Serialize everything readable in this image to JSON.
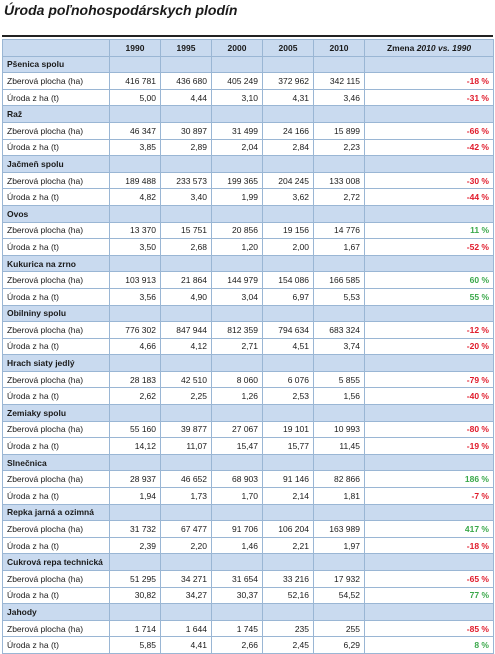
{
  "title": "Úroda poľnohospodárskych plodín",
  "columns": {
    "years": [
      "1990",
      "1995",
      "2000",
      "2005",
      "2010"
    ],
    "change_prefix": "Zmena ",
    "change_range": "2010 vs. 1990"
  },
  "colors": {
    "negative": "#e01a2a",
    "positive": "#3aa84a",
    "header": "#c9daef"
  },
  "crops": [
    {
      "name": "Pšenica spolu",
      "rows": [
        {
          "label": "Zberová plocha (ha)",
          "values": [
            "416 781",
            "436 680",
            "405 249",
            "372 962",
            "342 115"
          ],
          "change": "-18 %",
          "trend": "neg"
        },
        {
          "label": "Úroda z ha (t)",
          "values": [
            "5,00",
            "4,44",
            "3,10",
            "4,31",
            "3,46"
          ],
          "change": "-31 %",
          "trend": "neg"
        }
      ]
    },
    {
      "name": "Raž",
      "rows": [
        {
          "label": "Zberová plocha (ha)",
          "values": [
            "46 347",
            "30 897",
            "31 499",
            "24 166",
            "15 899"
          ],
          "change": "-66 %",
          "trend": "neg"
        },
        {
          "label": "Úroda z ha (t)",
          "values": [
            "3,85",
            "2,89",
            "2,04",
            "2,84",
            "2,23"
          ],
          "change": "-42 %",
          "trend": "neg"
        }
      ]
    },
    {
      "name": "Jačmeň spolu",
      "rows": [
        {
          "label": "Zberová plocha (ha)",
          "values": [
            "189 488",
            "233 573",
            "199 365",
            "204 245",
            "133 008"
          ],
          "change": "-30 %",
          "trend": "neg"
        },
        {
          "label": "Úroda z ha (t)",
          "values": [
            "4,82",
            "3,40",
            "1,99",
            "3,62",
            "2,72"
          ],
          "change": "-44 %",
          "trend": "neg"
        }
      ]
    },
    {
      "name": "Ovos",
      "rows": [
        {
          "label": "Zberová plocha (ha)",
          "values": [
            "13 370",
            "15 751",
            "20 856",
            "19 156",
            "14 776"
          ],
          "change": "11 %",
          "trend": "pos"
        },
        {
          "label": "Úroda z ha (t)",
          "values": [
            "3,50",
            "2,68",
            "1,20",
            "2,00",
            "1,67"
          ],
          "change": "-52 %",
          "trend": "neg"
        }
      ]
    },
    {
      "name": "Kukurica na zrno",
      "rows": [
        {
          "label": "Zberová plocha (ha)",
          "values": [
            "103 913",
            "21 864",
            "144 979",
            "154 086",
            "166 585"
          ],
          "change": "60 %",
          "trend": "pos"
        },
        {
          "label": "Úroda z ha (t)",
          "values": [
            "3,56",
            "4,90",
            "3,04",
            "6,97",
            "5,53"
          ],
          "change": "55 %",
          "trend": "pos"
        }
      ]
    },
    {
      "name": "Obilniny spolu",
      "rows": [
        {
          "label": "Zberová plocha (ha)",
          "values": [
            "776 302",
            "847 944",
            "812 359",
            "794 634",
            "683 324"
          ],
          "change": "-12 %",
          "trend": "neg"
        },
        {
          "label": "Úroda z ha (t)",
          "values": [
            "4,66",
            "4,12",
            "2,71",
            "4,51",
            "3,74"
          ],
          "change": "-20 %",
          "trend": "neg"
        }
      ]
    },
    {
      "name": "Hrach siaty jedlý",
      "rows": [
        {
          "label": "Zberová plocha (ha)",
          "values": [
            "28 183",
            "42 510",
            "8 060",
            "6 076",
            "5 855"
          ],
          "change": "-79 %",
          "trend": "neg"
        },
        {
          "label": "Úroda z ha (t)",
          "values": [
            "2,62",
            "2,25",
            "1,26",
            "2,53",
            "1,56"
          ],
          "change": "-40 %",
          "trend": "neg"
        }
      ]
    },
    {
      "name": "Zemiaky spolu",
      "rows": [
        {
          "label": "Zberová plocha (ha)",
          "values": [
            "55 160",
            "39 877",
            "27 067",
            "19 101",
            "10 993"
          ],
          "change": "-80 %",
          "trend": "neg"
        },
        {
          "label": "Úroda z ha (t)",
          "values": [
            "14,12",
            "11,07",
            "15,47",
            "15,77",
            "11,45"
          ],
          "change": "-19 %",
          "trend": "neg"
        }
      ]
    },
    {
      "name": "Slnečnica",
      "rows": [
        {
          "label": "Zberová plocha (ha)",
          "values": [
            "28 937",
            "46 652",
            "68 903",
            "91 146",
            "82 866"
          ],
          "change": "186 %",
          "trend": "pos"
        },
        {
          "label": "Úroda z ha (t)",
          "values": [
            "1,94",
            "1,73",
            "1,70",
            "2,14",
            "1,81"
          ],
          "change": "-7 %",
          "trend": "neg"
        }
      ]
    },
    {
      "name": "Repka jarná a ozimná",
      "rows": [
        {
          "label": "Zberová plocha (ha)",
          "values": [
            "31 732",
            "67 477",
            "91 706",
            "106 204",
            "163 989"
          ],
          "change": "417 %",
          "trend": "pos"
        },
        {
          "label": "Úroda z ha (t)",
          "values": [
            "2,39",
            "2,20",
            "1,46",
            "2,21",
            "1,97"
          ],
          "change": "-18 %",
          "trend": "neg"
        }
      ]
    },
    {
      "name": "Cukrová repa technická",
      "rows": [
        {
          "label": "Zberová plocha (ha)",
          "values": [
            "51 295",
            "34 271",
            "31 654",
            "33 216",
            "17 932"
          ],
          "change": "-65 %",
          "trend": "neg"
        },
        {
          "label": "Úroda z ha (t)",
          "values": [
            "30,82",
            "34,27",
            "30,37",
            "52,16",
            "54,52"
          ],
          "change": "77 %",
          "trend": "pos"
        }
      ]
    },
    {
      "name": "Jahody",
      "rows": [
        {
          "label": "Zberová plocha (ha)",
          "values": [
            "1 714",
            "1 644",
            "1 745",
            "235",
            "255"
          ],
          "change": "-85 %",
          "trend": "neg"
        },
        {
          "label": "Úroda z ha (t)",
          "values": [
            "5,85",
            "4,41",
            "2,66",
            "2,45",
            "6,29"
          ],
          "change": "8 %",
          "trend": "pos"
        }
      ]
    }
  ]
}
